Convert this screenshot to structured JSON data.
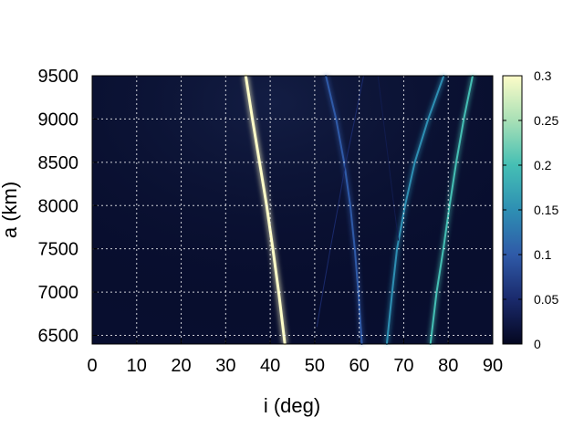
{
  "chart_data": {
    "type": "heatmap",
    "title": "",
    "xlabel": "i (deg)",
    "ylabel": "a (km)",
    "xlim": [
      0,
      90
    ],
    "ylim": [
      6400,
      9500
    ],
    "x_ticks": [
      "0",
      "10",
      "20",
      "30",
      "40",
      "50",
      "60",
      "70",
      "80",
      "90"
    ],
    "y_ticks": [
      "6500",
      "7000",
      "7500",
      "8000",
      "8500",
      "9000",
      "9500"
    ],
    "grid": true,
    "colorbar": {
      "range": [
        0,
        0.3
      ],
      "ticks": [
        "0",
        "0.05",
        "0.1",
        "0.15",
        "0.2",
        "0.25",
        "0.3"
      ],
      "colors": [
        "#040720",
        "#1a2a6c",
        "#2f5aa8",
        "#2e8fb3",
        "#45bfb4",
        "#a8e0b6",
        "#fdfcc8"
      ]
    },
    "background_value": 0.01,
    "resonance_curves": [
      {
        "intensity": 0.3,
        "points": [
          [
            34.5,
            9500
          ],
          [
            36,
            9000
          ],
          [
            37.6,
            8500
          ],
          [
            39.2,
            8000
          ],
          [
            40.6,
            7500
          ],
          [
            41.9,
            7000
          ],
          [
            43.3,
            6400
          ]
        ]
      },
      {
        "intensity": 0.2,
        "points": [
          [
            85.5,
            9500
          ],
          [
            83.5,
            9000
          ],
          [
            81.8,
            8500
          ],
          [
            80.3,
            8000
          ],
          [
            78.9,
            7500
          ],
          [
            77.4,
            7000
          ],
          [
            76.0,
            6400
          ]
        ]
      },
      {
        "intensity": 0.15,
        "points": [
          [
            79.0,
            9500
          ],
          [
            75.5,
            9000
          ],
          [
            72.5,
            8500
          ],
          [
            70.3,
            8000
          ],
          [
            68.5,
            7500
          ],
          [
            67.4,
            7000
          ],
          [
            66.2,
            6400
          ]
        ]
      },
      {
        "intensity": 0.1,
        "points": [
          [
            52.5,
            9500
          ],
          [
            54.8,
            9000
          ],
          [
            56.6,
            8500
          ],
          [
            58.0,
            8000
          ],
          [
            59.0,
            7500
          ],
          [
            59.8,
            7000
          ],
          [
            60.6,
            6400
          ]
        ]
      },
      {
        "intensity": 0.05,
        "points": [
          [
            61.0,
            9500
          ],
          [
            59.0,
            9000
          ],
          [
            57.0,
            8500
          ],
          [
            55.3,
            8000
          ],
          [
            53.5,
            7500
          ],
          [
            51.8,
            7000
          ],
          [
            50.5,
            6600
          ]
        ]
      },
      {
        "intensity": 0.03,
        "points": [
          [
            64.2,
            9500
          ],
          [
            65.4,
            9000
          ],
          [
            66.6,
            8500
          ],
          [
            67.8,
            8000
          ],
          [
            68.8,
            7600
          ]
        ]
      }
    ]
  }
}
